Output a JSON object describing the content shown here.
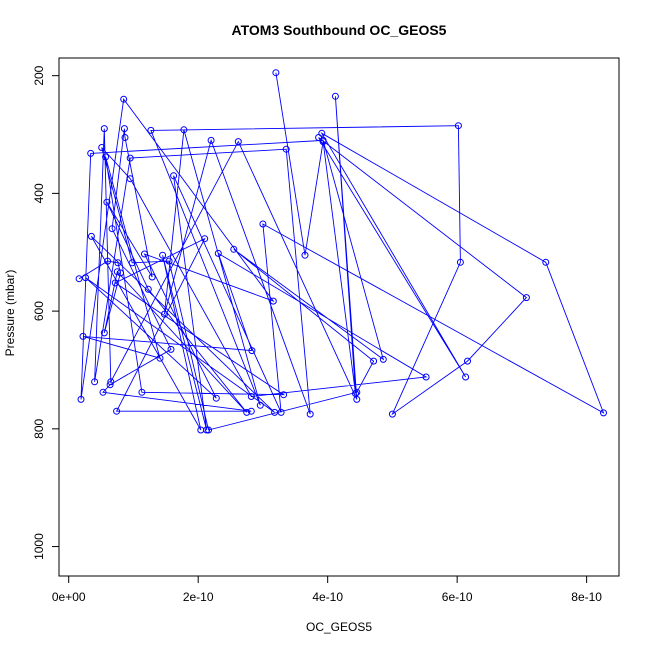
{
  "chart_data": {
    "type": "scatter",
    "title": "ATOM3 Southbound OC_GEOS5",
    "xlabel": "OC_GEOS5",
    "ylabel": "Pressure (mbar)",
    "xlim": [
      -1.5e-11,
      8.5e-10
    ],
    "ylim": [
      1050,
      170
    ],
    "y_reversed": true,
    "x_ticks": [
      {
        "value": 0,
        "label": "0e+00"
      },
      {
        "value": 2e-10,
        "label": "2e-10"
      },
      {
        "value": 4e-10,
        "label": "4e-10"
      },
      {
        "value": 6e-10,
        "label": "6e-10"
      },
      {
        "value": 8e-10,
        "label": "8e-10"
      }
    ],
    "y_ticks": [
      {
        "value": 200,
        "label": "200"
      },
      {
        "value": 400,
        "label": "400"
      },
      {
        "value": 600,
        "label": "600"
      },
      {
        "value": 800,
        "label": "800"
      },
      {
        "value": 1000,
        "label": "1000"
      }
    ],
    "series_color": "#0000ff",
    "grid": false,
    "legend": "none",
    "points": [
      [
        3.2e-10,
        195
      ],
      [
        3.65e-10,
        505
      ],
      [
        3.93e-10,
        312
      ],
      [
        4.43e-10,
        740
      ],
      [
        4.12e-10,
        235
      ],
      [
        4.45e-10,
        750
      ],
      [
        2.62e-10,
        312
      ],
      [
        6.5e-11,
        720
      ],
      [
        5.5e-11,
        290
      ],
      [
        4e-11,
        720
      ],
      [
        9.5e-11,
        340
      ],
      [
        3.36e-10,
        325
      ],
      [
        3.73e-10,
        775
      ],
      [
        2.2e-10,
        310
      ],
      [
        1.48e-10,
        605
      ],
      [
        1.78e-10,
        292
      ],
      [
        2.96e-10,
        760
      ],
      [
        1.27e-10,
        293
      ],
      [
        6.02e-10,
        285
      ],
      [
        6.05e-10,
        517
      ],
      [
        5e-10,
        775
      ],
      [
        6.16e-10,
        685
      ],
      [
        7.07e-10,
        577
      ],
      [
        3.86e-10,
        305
      ],
      [
        6.13e-10,
        712
      ],
      [
        3.91e-10,
        298
      ],
      [
        7.37e-10,
        517
      ],
      [
        8.26e-10,
        773
      ],
      [
        3e-10,
        452
      ],
      [
        3.28e-10,
        772
      ],
      [
        1.62e-10,
        370
      ],
      [
        2.13e-10,
        802
      ],
      [
        1.45e-10,
        505
      ],
      [
        2.04e-10,
        802
      ],
      [
        3.5e-11,
        473
      ],
      [
        3.18e-10,
        772
      ],
      [
        2.6e-11,
        543
      ],
      [
        2.28e-10,
        748
      ],
      [
        1.17e-10,
        503
      ],
      [
        3.16e-10,
        583
      ],
      [
        8.5e-11,
        240
      ],
      [
        1.9e-11,
        750
      ],
      [
        3.4e-11,
        332
      ],
      [
        3.93e-10,
        310
      ],
      [
        4.86e-10,
        682
      ],
      [
        2.55e-10,
        495
      ],
      [
        4.71e-10,
        685
      ],
      [
        4.45e-10,
        738
      ],
      [
        2.16e-10,
        802
      ],
      [
        1.55e-10,
        515
      ],
      [
        9.8e-11,
        518
      ],
      [
        5.1e-11,
        322
      ],
      [
        9.5e-11,
        375
      ],
      [
        2.82e-10,
        745
      ],
      [
        5.52e-10,
        712
      ],
      [
        2.31e-10,
        502
      ],
      [
        2.83e-10,
        667
      ],
      [
        2.2e-11,
        643
      ],
      [
        1.41e-10,
        680
      ],
      [
        5.7e-11,
        338
      ],
      [
        1.13e-10,
        738
      ],
      [
        3.32e-10,
        742
      ],
      [
        7.2e-11,
        552
      ],
      [
        2.1e-10,
        477
      ],
      [
        7.4e-11,
        770
      ],
      [
        2.82e-10,
        770
      ],
      [
        5.3e-11,
        738
      ],
      [
        6.4e-11,
        725
      ],
      [
        1.58e-10,
        665
      ],
      [
        6.7e-11,
        460
      ],
      [
        8.6e-11,
        290
      ],
      [
        8.7e-11,
        305
      ],
      [
        1.29e-10,
        542
      ],
      [
        5.9e-11,
        415
      ],
      [
        1.23e-10,
        563
      ],
      [
        2.75e-10,
        772
      ],
      [
        7.5e-11,
        533
      ],
      [
        5.5e-11,
        637
      ],
      [
        8e-11,
        535
      ],
      [
        7.6e-11,
        518
      ],
      [
        6e-11,
        515
      ],
      [
        1.6e-11,
        545
      ]
    ]
  }
}
